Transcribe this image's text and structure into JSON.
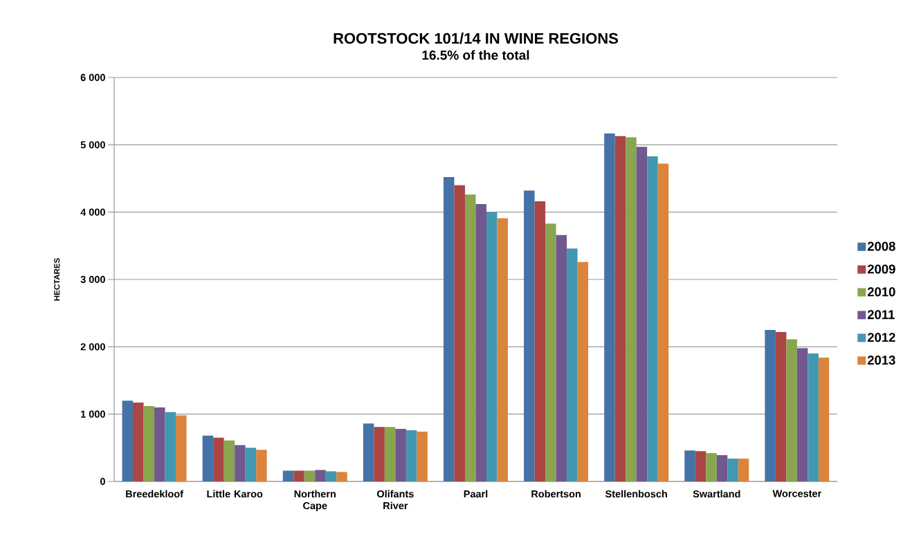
{
  "chart_data": {
    "type": "bar",
    "title": "ROOTSTOCK 101/14 IN WINE REGIONS",
    "subtitle": "16.5% of the total",
    "ylabel": "HECTARES",
    "categories": [
      "Breedekloof",
      "Little Karoo",
      "Northern Cape",
      "Olifants River",
      "Paarl",
      "Robertson",
      "Stellenbosch",
      "Swartland",
      "Worcester"
    ],
    "series": [
      {
        "name": "2008",
        "color": "#4572a7",
        "values": [
          1200,
          680,
          160,
          860,
          4520,
          4320,
          5170,
          460,
          2250
        ]
      },
      {
        "name": "2009",
        "color": "#aa4643",
        "values": [
          1170,
          650,
          160,
          810,
          4400,
          4160,
          5130,
          450,
          2220
        ]
      },
      {
        "name": "2010",
        "color": "#89a54e",
        "values": [
          1120,
          610,
          160,
          810,
          4260,
          3830,
          5110,
          420,
          2110
        ]
      },
      {
        "name": "2011",
        "color": "#71588f",
        "values": [
          1100,
          540,
          170,
          780,
          4120,
          3660,
          4970,
          390,
          1980
        ]
      },
      {
        "name": "2012",
        "color": "#4198af",
        "values": [
          1030,
          500,
          150,
          760,
          4000,
          3460,
          4830,
          340,
          1900
        ]
      },
      {
        "name": "2013",
        "color": "#db843d",
        "values": [
          980,
          470,
          140,
          740,
          3910,
          3260,
          4720,
          340,
          1840
        ]
      }
    ],
    "ylim": [
      0,
      6000
    ],
    "yticks": [
      {
        "value": 0,
        "label": "0"
      },
      {
        "value": 1000,
        "label": "1 000"
      },
      {
        "value": 2000,
        "label": "2 000"
      },
      {
        "value": 3000,
        "label": "3 000"
      },
      {
        "value": 4000,
        "label": "4 000"
      },
      {
        "value": 5000,
        "label": "5 000"
      },
      {
        "value": 6000,
        "label": "6 000"
      }
    ],
    "grid": "y",
    "legend": "right"
  }
}
